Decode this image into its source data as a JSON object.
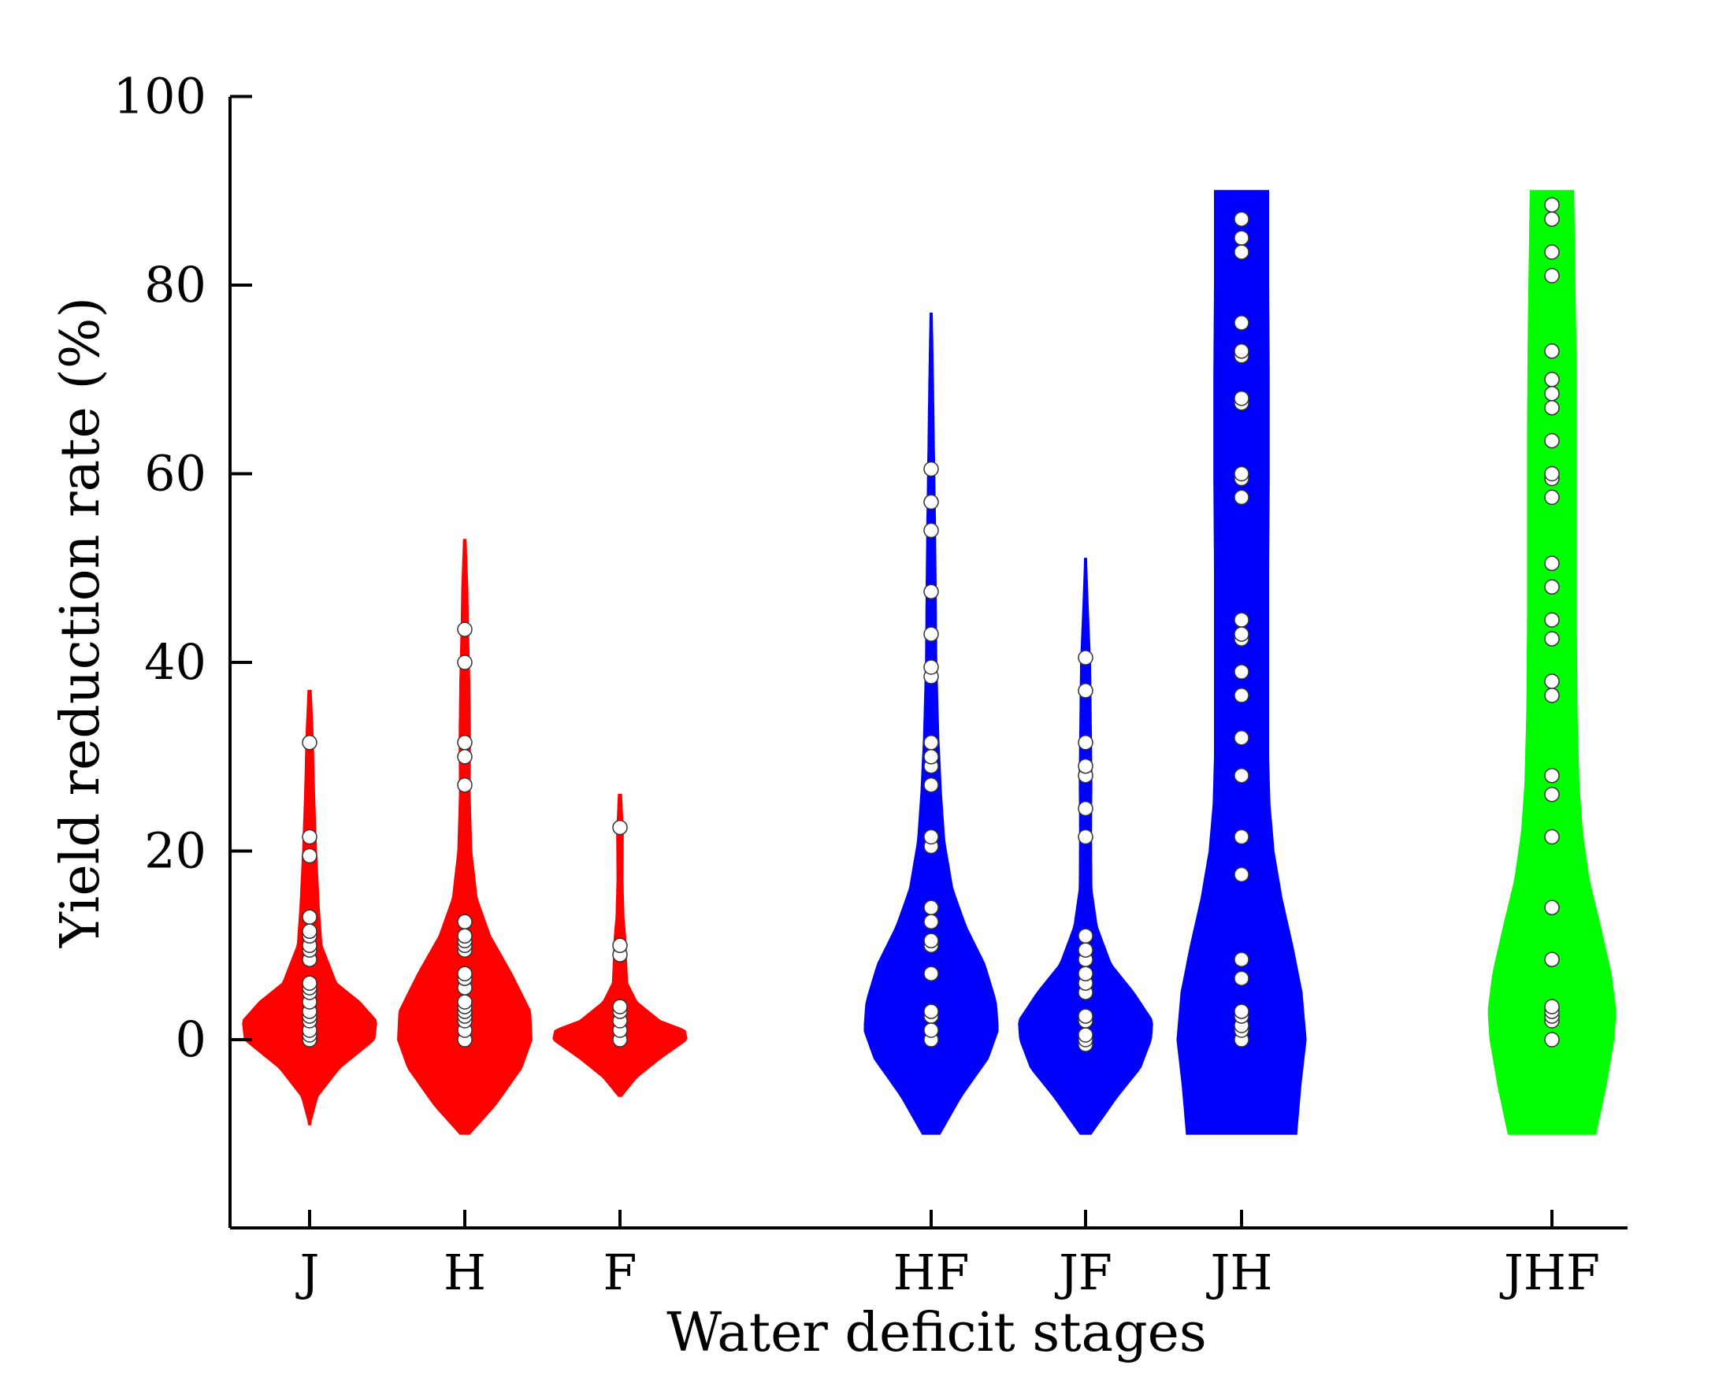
{
  "chart_data": {
    "type": "violin",
    "xlabel": "Water deficit stages",
    "ylabel": "Yield reduction rate (%)",
    "ylim": [
      -20,
      100
    ],
    "yticks": [
      0,
      20,
      40,
      60,
      80,
      100
    ],
    "grid": false,
    "colors": {
      "single": "#ff0000",
      "double": "#0000ff",
      "triple": "#00ff00"
    },
    "categories": [
      {
        "label": "J",
        "group": "single",
        "color": "#ff0000",
        "range": [
          -9,
          37
        ],
        "density": [
          [
            -9,
            0.005
          ],
          [
            -6,
            0.12
          ],
          [
            -3,
            0.45
          ],
          [
            0,
            0.97
          ],
          [
            2,
            1.0
          ],
          [
            4,
            0.75
          ],
          [
            6,
            0.4
          ],
          [
            10,
            0.18
          ],
          [
            14,
            0.14
          ],
          [
            20,
            0.1
          ],
          [
            26,
            0.07
          ],
          [
            32,
            0.05
          ],
          [
            37,
            0.02
          ]
        ],
        "points": [
          0,
          0.5,
          1,
          2,
          2.5,
          3,
          4,
          5,
          5.5,
          6,
          8.5,
          9.5,
          10,
          11,
          11.5,
          13,
          19.5,
          21.5,
          31.5
        ]
      },
      {
        "label": "H",
        "group": "single",
        "color": "#ff0000",
        "range": [
          -10,
          53
        ],
        "density": [
          [
            -10,
            0.07
          ],
          [
            -7,
            0.45
          ],
          [
            -3,
            0.85
          ],
          [
            0,
            1.0
          ],
          [
            3,
            0.98
          ],
          [
            7,
            0.7
          ],
          [
            11,
            0.38
          ],
          [
            15,
            0.18
          ],
          [
            20,
            0.1
          ],
          [
            26,
            0.075
          ],
          [
            32,
            0.08
          ],
          [
            38,
            0.07
          ],
          [
            44,
            0.05
          ],
          [
            48,
            0.04
          ],
          [
            53,
            0.015
          ]
        ],
        "points": [
          0,
          1,
          2,
          2.5,
          3,
          3.5,
          4,
          5.5,
          6.5,
          7,
          9.5,
          10,
          10.5,
          11,
          12.5,
          27,
          30,
          31.5,
          40,
          43.5
        ]
      },
      {
        "label": "F",
        "group": "single",
        "color": "#ff0000",
        "range": [
          -6,
          26
        ],
        "density": [
          [
            -6,
            0.02
          ],
          [
            -4,
            0.25
          ],
          [
            -2,
            0.6
          ],
          [
            0,
            1.0
          ],
          [
            1,
            0.97
          ],
          [
            2,
            0.6
          ],
          [
            4,
            0.25
          ],
          [
            6,
            0.11
          ],
          [
            9,
            0.09
          ],
          [
            11,
            0.08
          ],
          [
            13,
            0.055
          ],
          [
            17,
            0.04
          ],
          [
            22,
            0.045
          ],
          [
            26,
            0.02
          ]
        ],
        "points": [
          0,
          1,
          2,
          3,
          3.5,
          9,
          10,
          22.5
        ]
      },
      {
        "label": "HF",
        "group": "double",
        "color": "#0000ff",
        "range": [
          -10,
          77
        ],
        "density": [
          [
            -10,
            0.13
          ],
          [
            -6,
            0.45
          ],
          [
            -2,
            0.85
          ],
          [
            1,
            1.0
          ],
          [
            4,
            0.97
          ],
          [
            8,
            0.8
          ],
          [
            12,
            0.52
          ],
          [
            16,
            0.32
          ],
          [
            21,
            0.2
          ],
          [
            26,
            0.15
          ],
          [
            32,
            0.11
          ],
          [
            40,
            0.08
          ],
          [
            48,
            0.07
          ],
          [
            55,
            0.06
          ],
          [
            62,
            0.045
          ],
          [
            70,
            0.03
          ],
          [
            77,
            0.012
          ]
        ],
        "points": [
          0,
          1,
          2.5,
          3,
          7,
          10,
          10.5,
          12.5,
          14,
          20.5,
          21.5,
          27,
          29,
          30,
          31.5,
          38.5,
          39.5,
          43,
          47.5,
          54,
          57,
          60.5
        ]
      },
      {
        "label": "JF",
        "group": "double",
        "color": "#0000ff",
        "range": [
          -10,
          51
        ],
        "density": [
          [
            -10,
            0.08
          ],
          [
            -6,
            0.48
          ],
          [
            -3,
            0.82
          ],
          [
            0,
            0.98
          ],
          [
            2,
            1.0
          ],
          [
            5,
            0.72
          ],
          [
            8,
            0.38
          ],
          [
            12,
            0.17
          ],
          [
            16,
            0.09
          ],
          [
            22,
            0.085
          ],
          [
            28,
            0.09
          ],
          [
            34,
            0.08
          ],
          [
            40,
            0.07
          ],
          [
            46,
            0.035
          ],
          [
            51,
            0.01
          ]
        ],
        "points": [
          -0.5,
          0,
          0.5,
          2,
          2.5,
          5,
          6,
          7,
          8.5,
          9.5,
          11,
          21.5,
          24.5,
          28,
          29,
          31.5,
          37,
          40.5
        ]
      },
      {
        "label": "JH",
        "group": "double",
        "color": "#0000ff",
        "range": [
          -10,
          90
        ],
        "density": [
          [
            -10,
            0.82
          ],
          [
            -5,
            0.88
          ],
          [
            0,
            0.96
          ],
          [
            5,
            0.9
          ],
          [
            10,
            0.76
          ],
          [
            15,
            0.6
          ],
          [
            20,
            0.48
          ],
          [
            25,
            0.42
          ],
          [
            30,
            0.4
          ],
          [
            40,
            0.4
          ],
          [
            50,
            0.4
          ],
          [
            60,
            0.41
          ],
          [
            70,
            0.41
          ],
          [
            80,
            0.4
          ],
          [
            90,
            0.4
          ]
        ],
        "points": [
          0,
          1,
          1.5,
          2.5,
          3,
          6.5,
          8.5,
          17.5,
          21.5,
          28,
          32,
          36.5,
          39,
          42.5,
          43,
          44.5,
          57.5,
          59.5,
          60,
          67.5,
          68,
          72.5,
          73,
          76,
          83.5,
          85,
          87
        ]
      },
      {
        "label": "JHF",
        "group": "triple",
        "color": "#00ff00",
        "range": [
          -10,
          90
        ],
        "density": [
          [
            -10,
            0.65
          ],
          [
            -5,
            0.8
          ],
          [
            0,
            0.92
          ],
          [
            3,
            0.95
          ],
          [
            7,
            0.88
          ],
          [
            12,
            0.72
          ],
          [
            17,
            0.55
          ],
          [
            22,
            0.45
          ],
          [
            27,
            0.4
          ],
          [
            35,
            0.37
          ],
          [
            45,
            0.36
          ],
          [
            55,
            0.36
          ],
          [
            65,
            0.36
          ],
          [
            75,
            0.35
          ],
          [
            85,
            0.33
          ],
          [
            90,
            0.32
          ]
        ],
        "points": [
          0,
          2,
          2.5,
          3,
          3.5,
          8.5,
          14,
          21.5,
          26,
          28,
          36.5,
          38,
          42.5,
          44.5,
          48,
          50.5,
          57.5,
          59.5,
          60,
          63.5,
          67,
          68.5,
          70,
          73,
          81,
          83.5,
          87,
          88.5
        ]
      }
    ]
  }
}
